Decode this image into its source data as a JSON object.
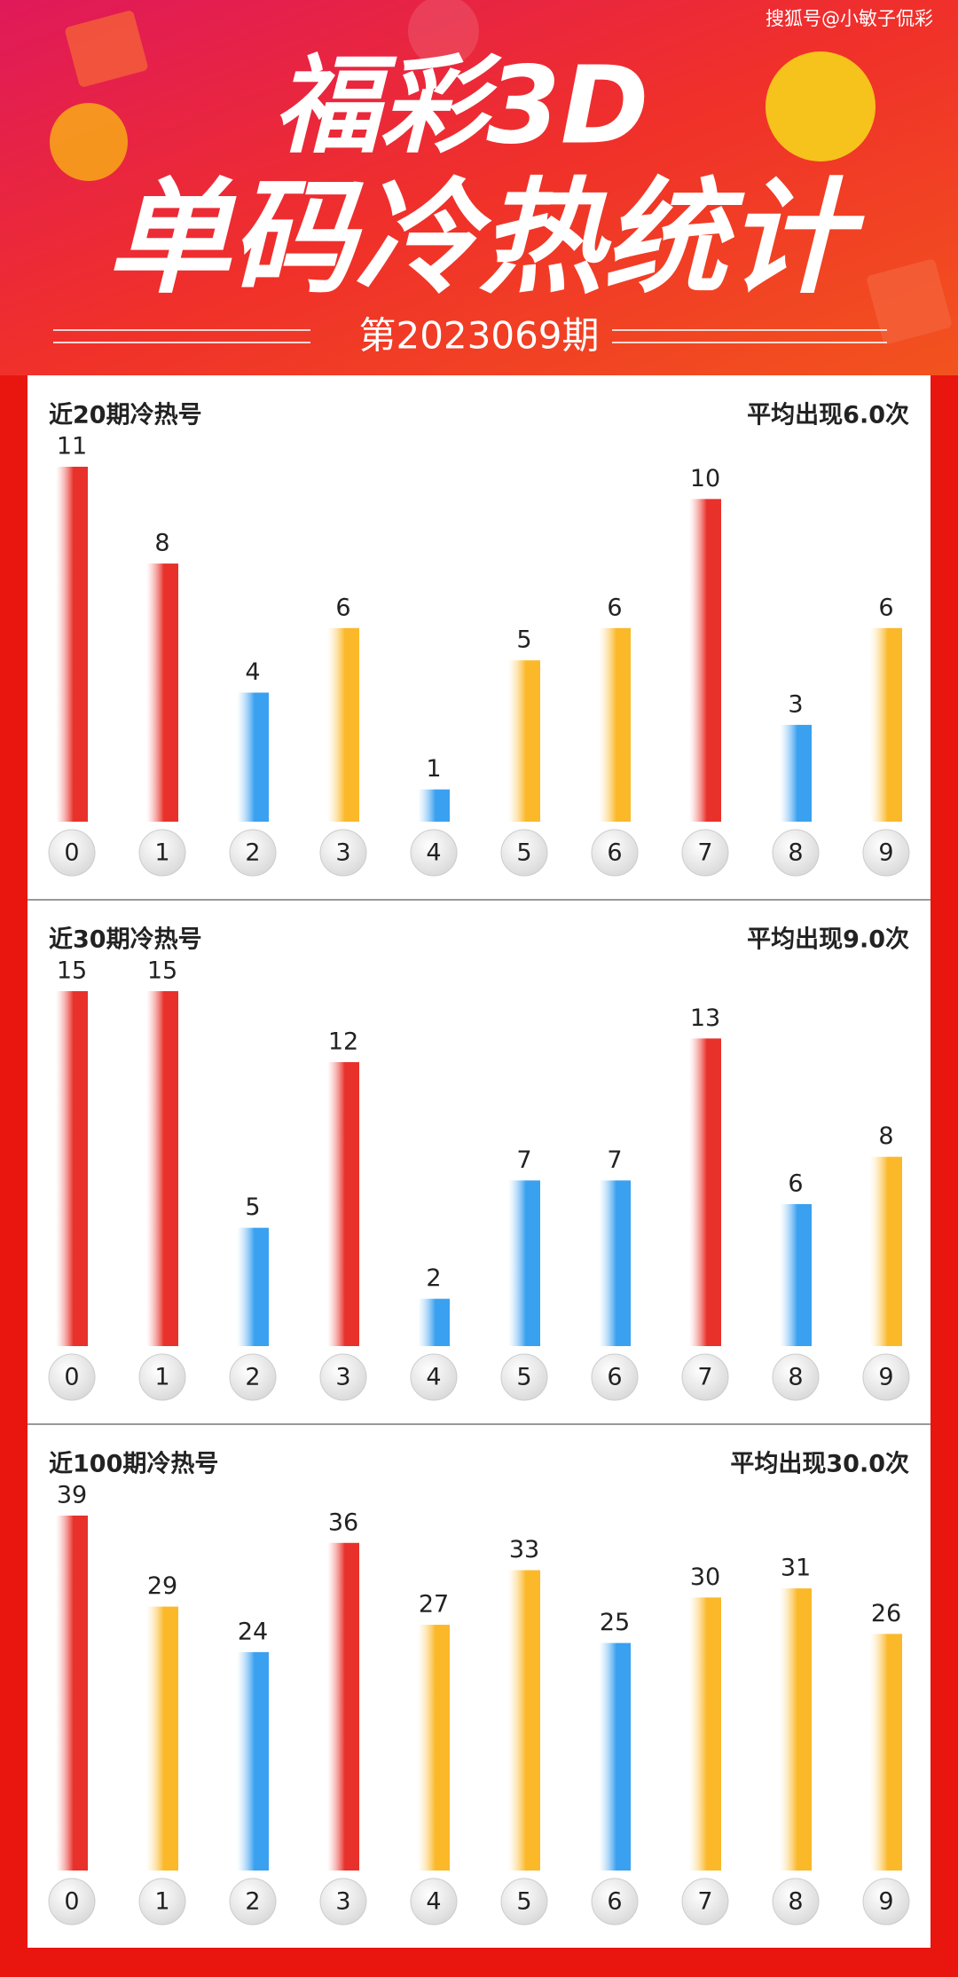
{
  "header": {
    "watermark": "搜狐号@小敏子侃彩",
    "title": "福彩3D",
    "subtitle": "单码冷热统计",
    "issue": "第2023069期"
  },
  "chart_data": [
    {
      "type": "bar",
      "title": "近20期冷热号",
      "subtitle": "平均出现6.0次",
      "categories": [
        "0",
        "1",
        "2",
        "3",
        "4",
        "5",
        "6",
        "7",
        "8",
        "9"
      ],
      "values": [
        11,
        8,
        4,
        6,
        1,
        5,
        6,
        10,
        3,
        6
      ],
      "colors": [
        "#e8312a",
        "#e8312a",
        "#3aa0f0",
        "#fbb829",
        "#3aa0f0",
        "#fbb829",
        "#fbb829",
        "#e8312a",
        "#3aa0f0",
        "#fbb829"
      ]
    },
    {
      "type": "bar",
      "title": "近30期冷热号",
      "subtitle": "平均出现9.0次",
      "categories": [
        "0",
        "1",
        "2",
        "3",
        "4",
        "5",
        "6",
        "7",
        "8",
        "9"
      ],
      "values": [
        15,
        15,
        5,
        12,
        2,
        7,
        7,
        13,
        6,
        8
      ],
      "colors": [
        "#e8312a",
        "#e8312a",
        "#3aa0f0",
        "#e8312a",
        "#3aa0f0",
        "#3aa0f0",
        "#3aa0f0",
        "#e8312a",
        "#3aa0f0",
        "#fbb829"
      ]
    },
    {
      "type": "bar",
      "title": "近100期冷热号",
      "subtitle": "平均出现30.0次",
      "categories": [
        "0",
        "1",
        "2",
        "3",
        "4",
        "5",
        "6",
        "7",
        "8",
        "9"
      ],
      "values": [
        39,
        29,
        24,
        36,
        27,
        33,
        25,
        30,
        31,
        26
      ],
      "colors": [
        "#e8312a",
        "#fbb829",
        "#3aa0f0",
        "#e8312a",
        "#fbb829",
        "#fbb829",
        "#3aa0f0",
        "#fbb829",
        "#fbb829",
        "#fbb829"
      ]
    }
  ]
}
